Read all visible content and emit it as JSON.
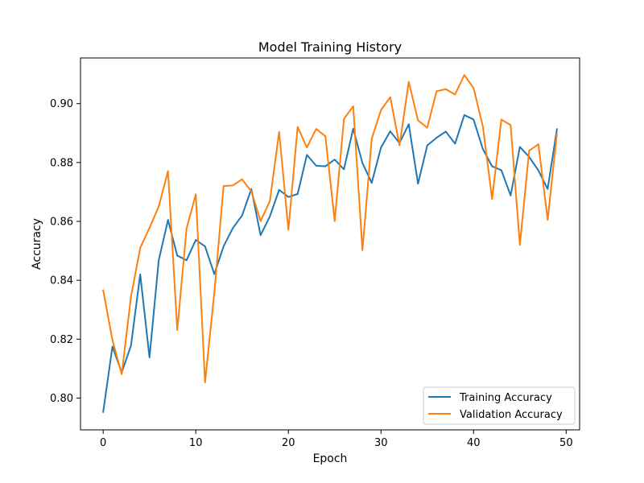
{
  "chart_data": {
    "type": "line",
    "title": "Model Training History",
    "xlabel": "Epoch",
    "ylabel": "Accuracy",
    "xlim": [
      -2.45,
      51.45
    ],
    "ylim": [
      0.7892,
      0.9155
    ],
    "xticks": [
      0,
      10,
      20,
      30,
      40,
      50
    ],
    "yticks": [
      0.8,
      0.82,
      0.84,
      0.86,
      0.88,
      0.9
    ],
    "xtick_labels": [
      "0",
      "10",
      "20",
      "30",
      "40",
      "50"
    ],
    "ytick_labels": [
      "0.80",
      "0.82",
      "0.84",
      "0.86",
      "0.88",
      "0.90"
    ],
    "grid": false,
    "legend": "lower-right",
    "x": [
      0,
      1,
      2,
      3,
      4,
      5,
      6,
      7,
      8,
      9,
      10,
      11,
      12,
      13,
      14,
      15,
      16,
      17,
      18,
      19,
      20,
      21,
      22,
      23,
      24,
      25,
      26,
      27,
      28,
      29,
      30,
      31,
      32,
      33,
      34,
      35,
      36,
      37,
      38,
      39,
      40,
      41,
      42,
      43,
      44,
      45,
      46,
      47,
      48,
      49
    ],
    "series": [
      {
        "name": "Training Accuracy",
        "color": "#1f77b4",
        "values": [
          0.7953,
          0.8175,
          0.8087,
          0.8178,
          0.842,
          0.8138,
          0.8468,
          0.8605,
          0.8484,
          0.8468,
          0.8537,
          0.8515,
          0.8421,
          0.8515,
          0.8577,
          0.862,
          0.871,
          0.8553,
          0.8617,
          0.8707,
          0.8683,
          0.8693,
          0.8826,
          0.8789,
          0.8787,
          0.881,
          0.8777,
          0.8915,
          0.8798,
          0.8731,
          0.8851,
          0.8906,
          0.8866,
          0.893,
          0.8728,
          0.8858,
          0.8884,
          0.8905,
          0.8864,
          0.8961,
          0.8946,
          0.8846,
          0.8787,
          0.8774,
          0.8688,
          0.8853,
          0.8819,
          0.8773,
          0.871,
          0.8913
        ]
      },
      {
        "name": "Validation Accuracy",
        "color": "#ff7f0e",
        "values": [
          0.8366,
          0.8197,
          0.8081,
          0.8344,
          0.851,
          0.8578,
          0.8651,
          0.8771,
          0.8231,
          0.8575,
          0.8692,
          0.8053,
          0.8357,
          0.872,
          0.8722,
          0.8743,
          0.8702,
          0.8601,
          0.8669,
          0.8904,
          0.8571,
          0.8921,
          0.8851,
          0.8914,
          0.8889,
          0.8601,
          0.8948,
          0.8991,
          0.8502,
          0.8881,
          0.8978,
          0.9022,
          0.8858,
          0.9074,
          0.8943,
          0.8918,
          0.9042,
          0.9049,
          0.9031,
          0.9097,
          0.9053,
          0.8923,
          0.8676,
          0.8946,
          0.8927,
          0.852,
          0.884,
          0.8862,
          0.8605,
          0.8898
        ]
      }
    ]
  }
}
